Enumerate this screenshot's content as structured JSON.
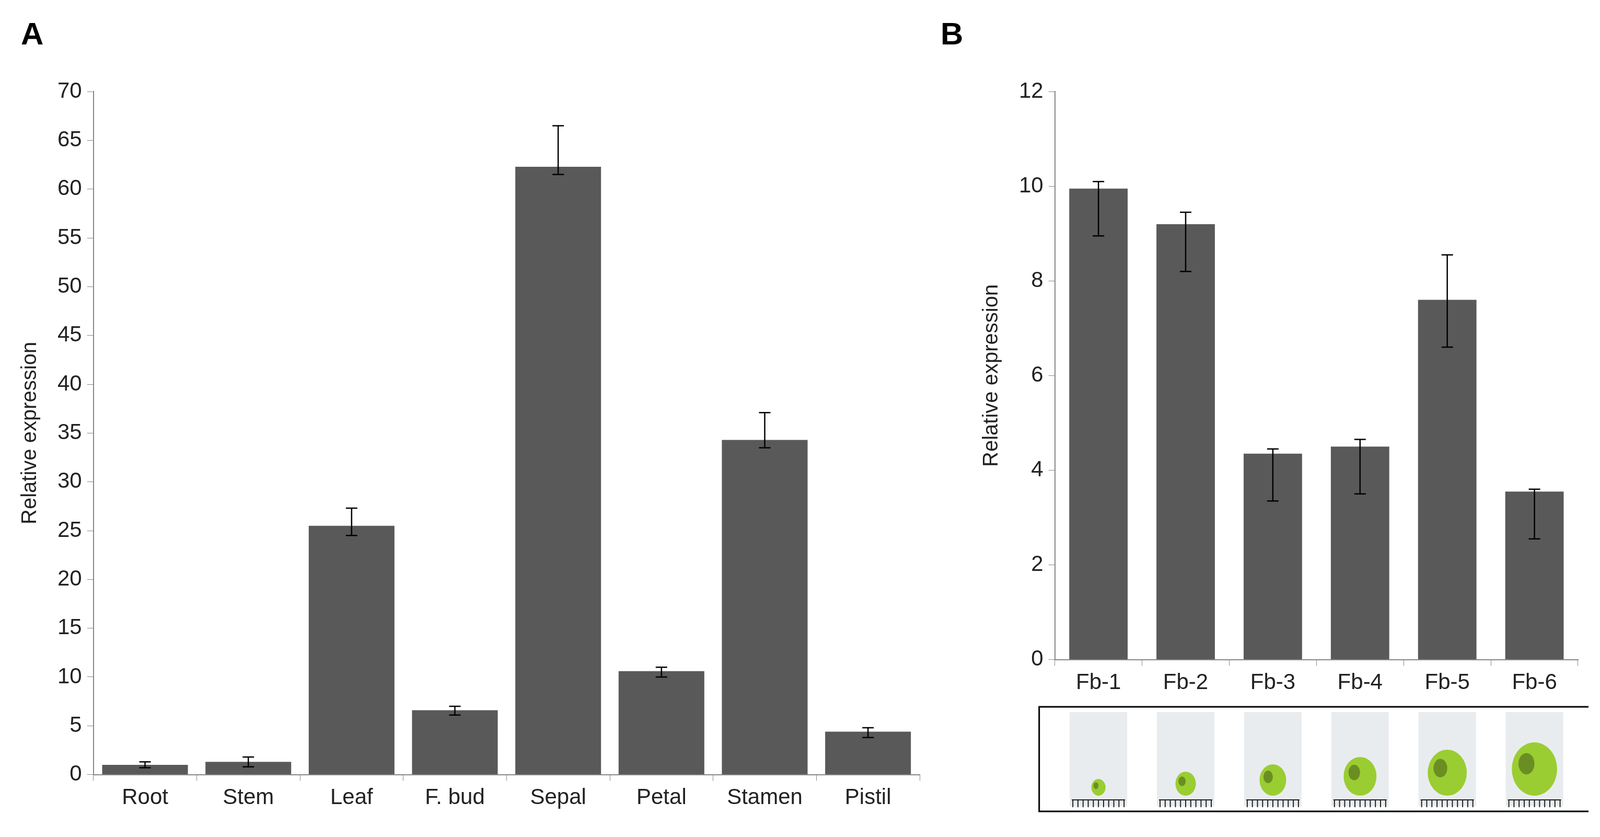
{
  "chart_data": [
    {
      "type": "bar",
      "panel_label": "A",
      "categories": [
        "Root",
        "Stem",
        "Leaf",
        "F. bud",
        "Sepal",
        "Petal",
        "Stamen",
        "Pistil"
      ],
      "values": [
        1.0,
        1.3,
        25.5,
        6.6,
        62.3,
        10.6,
        34.3,
        4.4
      ],
      "error_minus": [
        0.3,
        0.5,
        1.0,
        0.5,
        0.8,
        0.6,
        0.8,
        0.6
      ],
      "error_plus": [
        0.3,
        0.5,
        1.8,
        0.4,
        4.2,
        0.4,
        2.8,
        0.4
      ],
      "y_label": "Relative expression",
      "ylim": [
        0,
        70
      ],
      "yticks": [
        0,
        5,
        10,
        15,
        20,
        25,
        30,
        35,
        40,
        45,
        50,
        55,
        60,
        65,
        70
      ],
      "color": "#595959",
      "grid": false
    },
    {
      "type": "bar",
      "panel_label": "B",
      "categories": [
        "Fb-1",
        "Fb-2",
        "Fb-3",
        "Fb-4",
        "Fb-5",
        "Fb-6"
      ],
      "values": [
        9.95,
        9.2,
        4.35,
        4.5,
        7.6,
        3.55
      ],
      "error_minus": [
        1.0,
        1.0,
        1.0,
        1.0,
        1.0,
        1.0
      ],
      "error_plus": [
        0.15,
        0.25,
        0.1,
        0.15,
        0.95,
        0.05
      ],
      "y_label": "Relative expression",
      "ylim": [
        0,
        12
      ],
      "yticks": [
        0,
        2,
        4,
        6,
        8,
        10,
        12
      ],
      "color": "#595959",
      "grid": false
    }
  ]
}
